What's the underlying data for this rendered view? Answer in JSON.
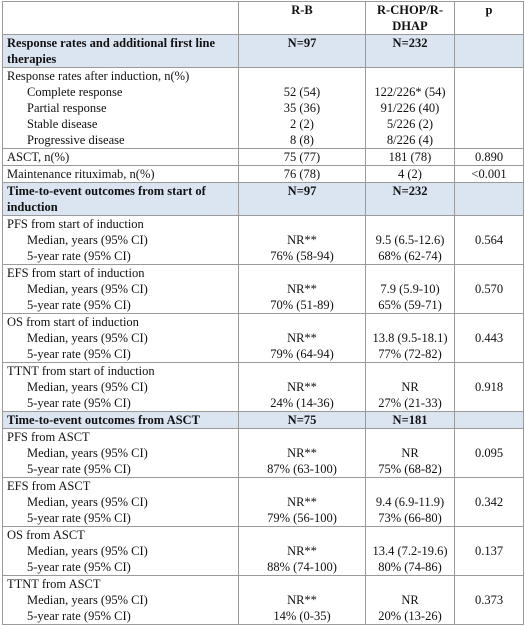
{
  "table": {
    "header": [
      "R-B",
      "R-CHOP/R-DHAP",
      "p"
    ],
    "sections": [
      {
        "title": "Response rates and additional first line therapies",
        "rb": "N=97",
        "rc": "N=232",
        "rows": [
          {
            "label": "Response rates after induction, n(%)",
            "items": [
              {
                "label": "Complete response",
                "rb": "52 (54)",
                "rc": "122/226* (54)"
              },
              {
                "label": "Partial response",
                "rb": "35 (36)",
                "rc": "91/226 (40)"
              },
              {
                "label": "Stable disease",
                "rb": "2 (2)",
                "rc": "5/226 (2)"
              },
              {
                "label": "Progressive disease",
                "rb": "8 (8)",
                "rc": "8/226 (4)"
              }
            ]
          },
          {
            "label": "ASCT, n(%)",
            "rb": "75 (77)",
            "rc": "181 (78)",
            "p": "0.890"
          },
          {
            "label": "Maintenance rituximab, n(%)",
            "rb": "76 (78)",
            "rc": "4 (2)",
            "p": "<0.001"
          }
        ]
      },
      {
        "title": "Time-to-event outcomes from start of induction",
        "rb": "N=97",
        "rc": "N=232",
        "rows": [
          {
            "label": "PFS from start of induction",
            "p": "0.564",
            "items": [
              {
                "label": "Median, years (95% CI)",
                "rb": "NR**",
                "rc": "9.5 (6.5-12.6)"
              },
              {
                "label": "5-year rate (95% CI)",
                "rb": "76% (58-94)",
                "rc": "68% (62-74)"
              }
            ]
          },
          {
            "label": "EFS from start of induction",
            "p": "0.570",
            "items": [
              {
                "label": "Median, years (95% CI)",
                "rb": "NR**",
                "rc": "7.9 (5.9-10)"
              },
              {
                "label": "5-year rate (95% CI)",
                "rb": "70% (51-89)",
                "rc": "65% (59-71)"
              }
            ]
          },
          {
            "label": "OS from start of induction",
            "p": "0.443",
            "items": [
              {
                "label": "Median, years (95% CI)",
                "rb": "NR**",
                "rc": "13.8 (9.5-18.1)"
              },
              {
                "label": "5-year rate (95% CI)",
                "rb": "79% (64-94)",
                "rc": "77% (72-82)"
              }
            ]
          },
          {
            "label": "TTNT from start of induction",
            "p": "0.918",
            "items": [
              {
                "label": "Median, years (95% CI)",
                "rb": "NR**",
                "rc": "NR"
              },
              {
                "label": "5-year rate (95% CI)",
                "rb": "24% (14-36)",
                "rc": "27% (21-33)"
              }
            ]
          }
        ]
      },
      {
        "title": "Time-to-event outcomes from ASCT",
        "rb": "N=75",
        "rc": "N=181",
        "rows": [
          {
            "label": "PFS from ASCT",
            "p": "0.095",
            "items": [
              {
                "label": "Median, years (95% CI)",
                "rb": "NR**",
                "rc": "NR"
              },
              {
                "label": "5-year rate (95% CI)",
                "rb": "87% (63-100)",
                "rc": "75% (68-82)"
              }
            ]
          },
          {
            "label": "EFS from ASCT",
            "p": "0.342",
            "items": [
              {
                "label": "Median, years (95% CI)",
                "rb": "NR**",
                "rc": "9.4 (6.9-11.9)"
              },
              {
                "label": "5-year rate (95% CI)",
                "rb": "79% (56-100)",
                "rc": "73% (66-80)"
              }
            ]
          },
          {
            "label": "OS from ASCT",
            "p": "0.137",
            "items": [
              {
                "label": "Median, years (95% CI)",
                "rb": "NR**",
                "rc": "13.4 (7.2-19.6)"
              },
              {
                "label": "5-year rate (95% CI)",
                "rb": "88% (74-100)",
                "rc": "80% (74-86)"
              }
            ]
          },
          {
            "label": "TTNT from ASCT",
            "p": "0.373",
            "items": [
              {
                "label": "Median, years (95% CI)",
                "rb": "NR**",
                "rc": "NR"
              },
              {
                "label": "5-year rate (95% CI)",
                "rb": "14% (0-35)",
                "rc": "20% (13-26)"
              }
            ]
          }
        ]
      }
    ]
  }
}
